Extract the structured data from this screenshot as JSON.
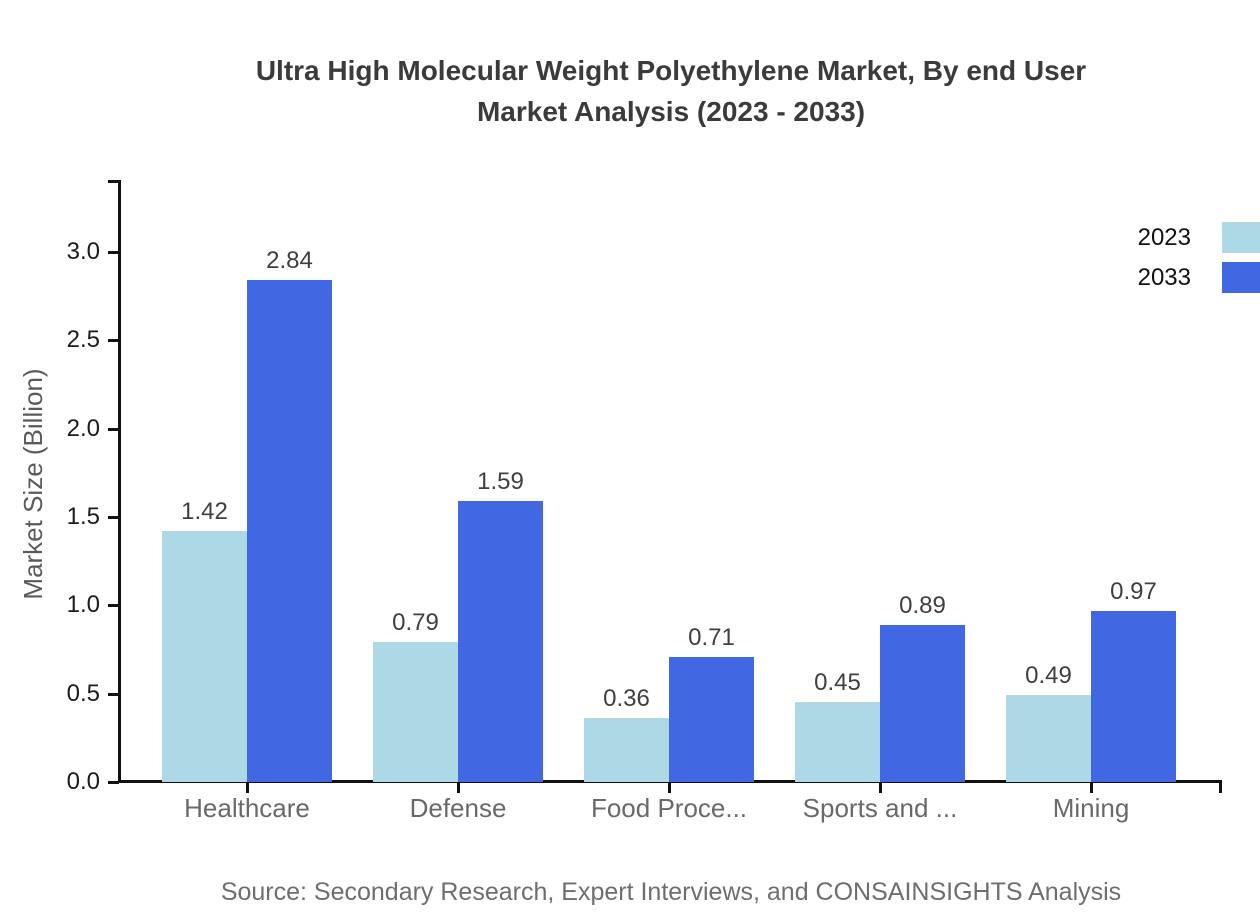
{
  "title": {
    "line1": "Ultra High Molecular Weight Polyethylene Market, By end User",
    "line2": "Market Analysis (2023 - 2033)"
  },
  "y_axis": {
    "label": "Market Size (Billion)"
  },
  "legend": {
    "position": "top-right",
    "items": [
      {
        "label": "2023",
        "color": "#ADD8E6"
      },
      {
        "label": "2033",
        "color": "#4267E2"
      }
    ]
  },
  "source": "Source: Secondary Research, Expert Interviews, and CONSAINSIGHTS Analysis",
  "chart_data": {
    "type": "bar",
    "title": "Ultra High Molecular Weight Polyethylene Market, By end User Market Analysis (2023 - 2033)",
    "categories": [
      "Healthcare",
      "Defense",
      "Food Proce...",
      "Sports and ...",
      "Mining"
    ],
    "series": [
      {
        "name": "2023",
        "color": "#ADD8E6",
        "values": [
          1.42,
          0.79,
          0.36,
          0.45,
          0.49
        ]
      },
      {
        "name": "2033",
        "color": "#4267E2",
        "values": [
          2.84,
          1.59,
          0.71,
          0.89,
          0.97
        ]
      }
    ],
    "xlabel": "",
    "ylabel": "Market Size (Billion)",
    "ylim": [
      0.0,
      3.4
    ],
    "yticks": [
      0.0,
      0.5,
      1.0,
      1.5,
      2.0,
      2.5,
      3.0
    ],
    "value_labels": true,
    "grid": false,
    "legend_position": "top-right"
  }
}
